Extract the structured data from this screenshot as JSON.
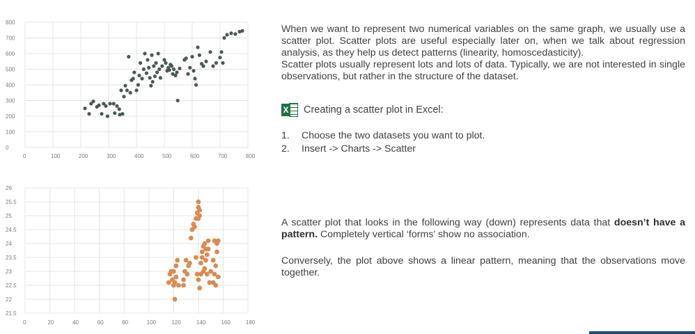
{
  "charts": [
    {
      "id": "top",
      "type": "scatter",
      "color": "#4a5a52",
      "xlim": [
        0,
        800
      ],
      "ylim": [
        0,
        800
      ],
      "xticks": [
        0,
        100,
        200,
        300,
        400,
        500,
        600,
        700,
        800
      ],
      "yticks": [
        0,
        100,
        200,
        300,
        400,
        500,
        600,
        700,
        800
      ],
      "points": [
        [
          215,
          250
        ],
        [
          230,
          215
        ],
        [
          237,
          280
        ],
        [
          245,
          295
        ],
        [
          258,
          260
        ],
        [
          265,
          270
        ],
        [
          275,
          215
        ],
        [
          282,
          280
        ],
        [
          290,
          265
        ],
        [
          296,
          200
        ],
        [
          305,
          280
        ],
        [
          318,
          280
        ],
        [
          322,
          220
        ],
        [
          330,
          265
        ],
        [
          338,
          245
        ],
        [
          340,
          210
        ],
        [
          350,
          215
        ],
        [
          345,
          365
        ],
        [
          355,
          325
        ],
        [
          360,
          395
        ],
        [
          366,
          365
        ],
        [
          372,
          580
        ],
        [
          378,
          350
        ],
        [
          382,
          430
        ],
        [
          388,
          440
        ],
        [
          392,
          480
        ],
        [
          400,
          365
        ],
        [
          406,
          400
        ],
        [
          410,
          460
        ],
        [
          414,
          540
        ],
        [
          420,
          440
        ],
        [
          426,
          500
        ],
        [
          430,
          600
        ],
        [
          436,
          475
        ],
        [
          440,
          560
        ],
        [
          444,
          510
        ],
        [
          448,
          445
        ],
        [
          452,
          395
        ],
        [
          455,
          590
        ],
        [
          458,
          420
        ],
        [
          462,
          520
        ],
        [
          466,
          455
        ],
        [
          470,
          540
        ],
        [
          474,
          480
        ],
        [
          478,
          600
        ],
        [
          482,
          500
        ],
        [
          486,
          445
        ],
        [
          492,
          520
        ],
        [
          500,
          560
        ],
        [
          505,
          540
        ],
        [
          510,
          490
        ],
        [
          514,
          510
        ],
        [
          518,
          495
        ],
        [
          522,
          530
        ],
        [
          526,
          520
        ],
        [
          530,
          470
        ],
        [
          534,
          500
        ],
        [
          540,
          460
        ],
        [
          545,
          480
        ],
        [
          548,
          300
        ],
        [
          555,
          505
        ],
        [
          572,
          560
        ],
        [
          578,
          570
        ],
        [
          585,
          470
        ],
        [
          592,
          510
        ],
        [
          600,
          580
        ],
        [
          605,
          490
        ],
        [
          610,
          440
        ],
        [
          614,
          400
        ],
        [
          620,
          640
        ],
        [
          626,
          590
        ],
        [
          634,
          535
        ],
        [
          640,
          520
        ],
        [
          650,
          550
        ],
        [
          665,
          610
        ],
        [
          675,
          520
        ],
        [
          686,
          540
        ],
        [
          700,
          575
        ],
        [
          705,
          610
        ],
        [
          710,
          540
        ],
        [
          715,
          700
        ],
        [
          725,
          720
        ],
        [
          740,
          730
        ],
        [
          755,
          725
        ],
        [
          770,
          740
        ],
        [
          780,
          745
        ]
      ]
    },
    {
      "id": "bottom",
      "type": "scatter",
      "color": "#d98b50",
      "xlim": [
        0,
        180
      ],
      "ylim": [
        21.5,
        26
      ],
      "xticks": [
        0,
        20,
        40,
        60,
        80,
        100,
        120,
        140,
        160,
        180
      ],
      "yticks": [
        21.5,
        22,
        22.5,
        23,
        23.5,
        24,
        24.5,
        25,
        25.5,
        26
      ],
      "points": [
        [
          116,
          22.6
        ],
        [
          117,
          22.9
        ],
        [
          118,
          23.0
        ],
        [
          119,
          22.7
        ],
        [
          120,
          22.5
        ],
        [
          120,
          23.0
        ],
        [
          121,
          22.6
        ],
        [
          122,
          22.8
        ],
        [
          122,
          23.2
        ],
        [
          123,
          23.4
        ],
        [
          121,
          22.0
        ],
        [
          124,
          22.5
        ],
        [
          128,
          22.5
        ],
        [
          128,
          22.7
        ],
        [
          129,
          23.0
        ],
        [
          130,
          23.4
        ],
        [
          131,
          22.9
        ],
        [
          132,
          23.2
        ],
        [
          133,
          23.3
        ],
        [
          134,
          24.2
        ],
        [
          135,
          24.5
        ],
        [
          136,
          24.7
        ],
        [
          137,
          24.6
        ],
        [
          138,
          24.9
        ],
        [
          138,
          23.5
        ],
        [
          139,
          22.9
        ],
        [
          139,
          25.1
        ],
        [
          140,
          25.3
        ],
        [
          140,
          25.5
        ],
        [
          141,
          25.2
        ],
        [
          141,
          25.0
        ],
        [
          140,
          24.9
        ],
        [
          140,
          22.7
        ],
        [
          141,
          22.4
        ],
        [
          142,
          22.9
        ],
        [
          142,
          23.3
        ],
        [
          143,
          23.5
        ],
        [
          143,
          23.7
        ],
        [
          144,
          23.9
        ],
        [
          144,
          23.0
        ],
        [
          145,
          23.1
        ],
        [
          145,
          24.0
        ],
        [
          146,
          23.8
        ],
        [
          146,
          23.4
        ],
        [
          147,
          23.6
        ],
        [
          147,
          22.9
        ],
        [
          148,
          23.8
        ],
        [
          148,
          24.1
        ],
        [
          149,
          22.6
        ],
        [
          150,
          23.0
        ],
        [
          152,
          23.4
        ],
        [
          152,
          22.6
        ],
        [
          153,
          22.9
        ],
        [
          153,
          24.1
        ],
        [
          154,
          23.2
        ],
        [
          154,
          22.5
        ],
        [
          155,
          24.0
        ],
        [
          155,
          23.7
        ],
        [
          156,
          24.1
        ],
        [
          156,
          22.8
        ]
      ]
    }
  ],
  "intro": {
    "line1": "When we want to represent two numerical variables on the same graph, we usually use a scatter plot. Scatter plots are useful especially later on, when we talk about regression analysis, as they help us detect patterns (linearity, homoscedasticity).",
    "line2": "Scatter plots usually represent lots and lots of data. Typically, we are not interested in single observations, but rather in the structure of the dataset."
  },
  "excel": {
    "icon": "excel-icon",
    "icon_letter": "X",
    "heading": "Creating a scatter plot in Excel:"
  },
  "steps": [
    {
      "num": "1.",
      "text": "Choose the two datasets you want to plot."
    },
    {
      "num": "2.",
      "text": "Insert -> Charts -> Scatter"
    }
  ],
  "pattern": {
    "before": "A scatter plot that looks in the following way (down) represents data that ",
    "bold": "doesn’t have a pattern.",
    "after": " Completely vertical ‘forms’ show no association."
  },
  "conversely": "Conversely, the plot above shows a linear pattern, meaning that the observations move together."
}
